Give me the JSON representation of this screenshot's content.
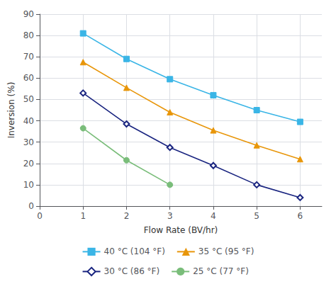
{
  "chart_data": {
    "type": "line",
    "x_label": "Flow Rate (BV/hr)",
    "y_label": "Inversion (%)",
    "series": [
      {
        "name": "40 °C (104 °F)",
        "color": "#3ab5e6",
        "marker": "square",
        "line_style": "solid",
        "x": [
          1,
          2,
          3,
          4,
          5,
          6
        ],
        "values": [
          81,
          69,
          59.5,
          52,
          45,
          39.5
        ]
      },
      {
        "name": "35 °C (95 °F)",
        "color": "#e8960a",
        "marker": "triangle",
        "line_style": "solid",
        "x": [
          1,
          2,
          3,
          4,
          5,
          6
        ],
        "values": [
          67.5,
          55.5,
          44,
          35.5,
          28.5,
          22
        ]
      },
      {
        "name": "30 °C (86 °F)",
        "color": "#1a2580",
        "marker": "open_diamond",
        "line_style": "solid",
        "x": [
          1,
          2,
          3,
          4,
          5,
          6
        ],
        "values": [
          53,
          38.5,
          27.5,
          19,
          10,
          4
        ]
      },
      {
        "name": "25 °C (77 °F)",
        "color": "#7abd7a",
        "marker": "circle",
        "line_style": "solid",
        "x": [
          1,
          2,
          3
        ],
        "values": [
          36.5,
          21.5,
          10
        ]
      }
    ],
    "xlim": [
      0,
      6.5
    ],
    "xticks": [
      0,
      1,
      2,
      3,
      4,
      5,
      6
    ],
    "ylim": [
      0,
      90
    ],
    "yticks": [
      0,
      10,
      20,
      30,
      40,
      50,
      60,
      70,
      80,
      90
    ],
    "grid": true,
    "legend": "bottom"
  }
}
